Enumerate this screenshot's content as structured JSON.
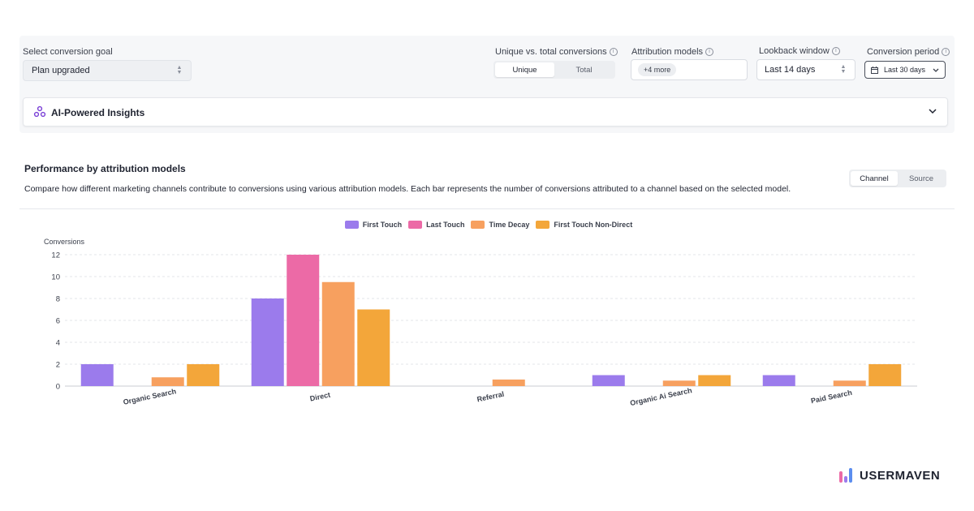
{
  "filters": {
    "conversion_goal": {
      "label": "Select conversion goal",
      "value": "Plan upgraded"
    },
    "unique_total": {
      "label": "Unique vs. total conversions",
      "options": [
        "Unique",
        "Total"
      ],
      "selected": "Unique"
    },
    "attribution_models": {
      "label": "Attribution models",
      "chip": "+4 more"
    },
    "lookback": {
      "label": "Lookback window",
      "value": "Last 14 days"
    },
    "conversion_period": {
      "label": "Conversion period",
      "value": "Last 30 days"
    }
  },
  "insights": {
    "title": "AI-Powered Insights"
  },
  "performance": {
    "title": "Performance by attribution models",
    "description": "Compare how different marketing channels contribute to conversions using various attribution models. Each bar represents the number of conversions attributed to a channel based on the selected model.",
    "view_options": [
      "Channel",
      "Source"
    ],
    "selected_view": "Channel"
  },
  "chart_data": {
    "type": "bar",
    "ylabel": "Conversions",
    "xlabel": "",
    "ylim": [
      0,
      12
    ],
    "yticks": [
      0,
      2,
      4,
      6,
      8,
      10,
      12
    ],
    "grid": true,
    "legend_position": "top-center",
    "categories": [
      "Organic Search",
      "Direct",
      "Referral",
      "Organic Ai Search",
      "Paid Search"
    ],
    "series": [
      {
        "name": "First Touch",
        "color": "#9b7bec",
        "values": [
          2,
          8,
          0,
          1,
          1
        ]
      },
      {
        "name": "Last Touch",
        "color": "#ec6aa6",
        "values": [
          0,
          12,
          0,
          0,
          0
        ]
      },
      {
        "name": "Time Decay",
        "color": "#f7a05f",
        "values": [
          0.8,
          9.5,
          0.6,
          0.5,
          0.5
        ]
      },
      {
        "name": "First Touch Non-Direct",
        "color": "#f3a63a",
        "values": [
          2,
          7,
          0,
          1,
          2
        ]
      }
    ]
  },
  "brand": {
    "name": "USERMAVEN"
  },
  "icons": {
    "info": "info-icon",
    "updown": "up-down-arrows-icon",
    "calendar": "calendar-icon",
    "chevron": "chevron-down-icon",
    "sparkle": "ai-sparkle-icon"
  }
}
